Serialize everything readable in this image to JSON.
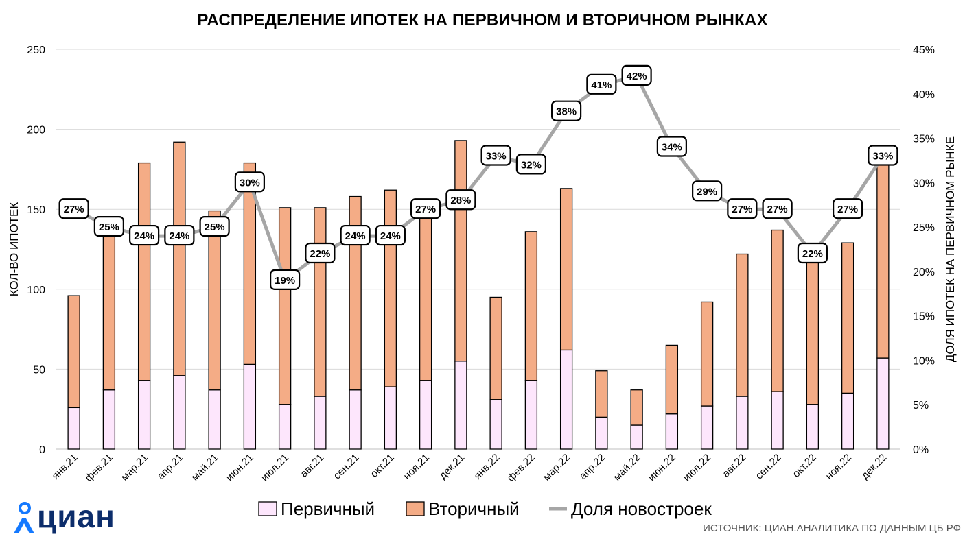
{
  "chart_data": {
    "type": "bar",
    "title": "РАСПРЕДЕЛЕНИЕ ИПОТЕК НА ПЕРВИЧНОМ И ВТОРИЧНОМ РЫНКАХ",
    "categories": [
      "янв.21",
      "фев.21",
      "мар.21",
      "апр.21",
      "май.21",
      "июн.21",
      "июл.21",
      "авг.21",
      "сен.21",
      "окт.21",
      "ноя.21",
      "дек.21",
      "янв.22",
      "фев.22",
      "мар.22",
      "апр.22",
      "май.22",
      "июн.22",
      "июл.22",
      "авг.22",
      "сен.22",
      "окт.22",
      "ноя.22",
      "дек.22"
    ],
    "ylabel": "КОЛ-ВО ИПОТЕК",
    "y2label": "ДОЛЯ ИПОТЕК НА ПЕРВИЧНОМ РЫНКЕ",
    "ylim": [
      0,
      250
    ],
    "y2lim": [
      0,
      45
    ],
    "yticks": [
      0,
      50,
      100,
      150,
      200,
      250
    ],
    "y2ticks": [
      "0%",
      "5%",
      "10%",
      "15%",
      "20%",
      "25%",
      "30%",
      "35%",
      "40%",
      "45%"
    ],
    "grid": true,
    "legend_position": "bottom",
    "series": [
      {
        "name": "Первичный",
        "kind": "bar-stacked",
        "color": "#fde6fc",
        "values": [
          26,
          37,
          43,
          46,
          37,
          53,
          28,
          33,
          37,
          39,
          43,
          55,
          31,
          43,
          62,
          20,
          15,
          22,
          27,
          33,
          36,
          28,
          35,
          57
        ]
      },
      {
        "name": "Вторичный",
        "kind": "bar-stacked",
        "color": "#f4ac86",
        "values": [
          70,
          98,
          136,
          146,
          112,
          126,
          123,
          118,
          121,
          123,
          111,
          138,
          64,
          93,
          101,
          29,
          22,
          43,
          65,
          89,
          101,
          99,
          94,
          123
        ]
      },
      {
        "name": "Доля новостроек",
        "kind": "line",
        "axis": "right",
        "color": "#a6a6a6",
        "values": [
          27,
          25,
          24,
          24,
          25,
          30,
          19,
          22,
          24,
          24,
          27,
          28,
          33,
          32,
          38,
          41,
          42,
          34,
          29,
          27,
          27,
          22,
          27,
          33
        ],
        "labels": [
          "27%",
          "25%",
          "24%",
          "24%",
          "25%",
          "30%",
          "19%",
          "22%",
          "24%",
          "24%",
          "27%",
          "28%",
          "33%",
          "32%",
          "38%",
          "41%",
          "42%",
          "34%",
          "29%",
          "27%",
          "27%",
          "22%",
          "27%",
          "33%"
        ]
      }
    ]
  },
  "source": "ИСТОЧНИК: ЦИАН.АНАЛИТИКА ПО ДАННЫМ  ЦБ РФ",
  "logo_text": "циан",
  "colors": {
    "primary": "#fde6fc",
    "secondary": "#f4ac86",
    "share_line": "#a6a6a6",
    "logo_blue": "#0c2d6b",
    "logo_accent": "#1479ff"
  }
}
